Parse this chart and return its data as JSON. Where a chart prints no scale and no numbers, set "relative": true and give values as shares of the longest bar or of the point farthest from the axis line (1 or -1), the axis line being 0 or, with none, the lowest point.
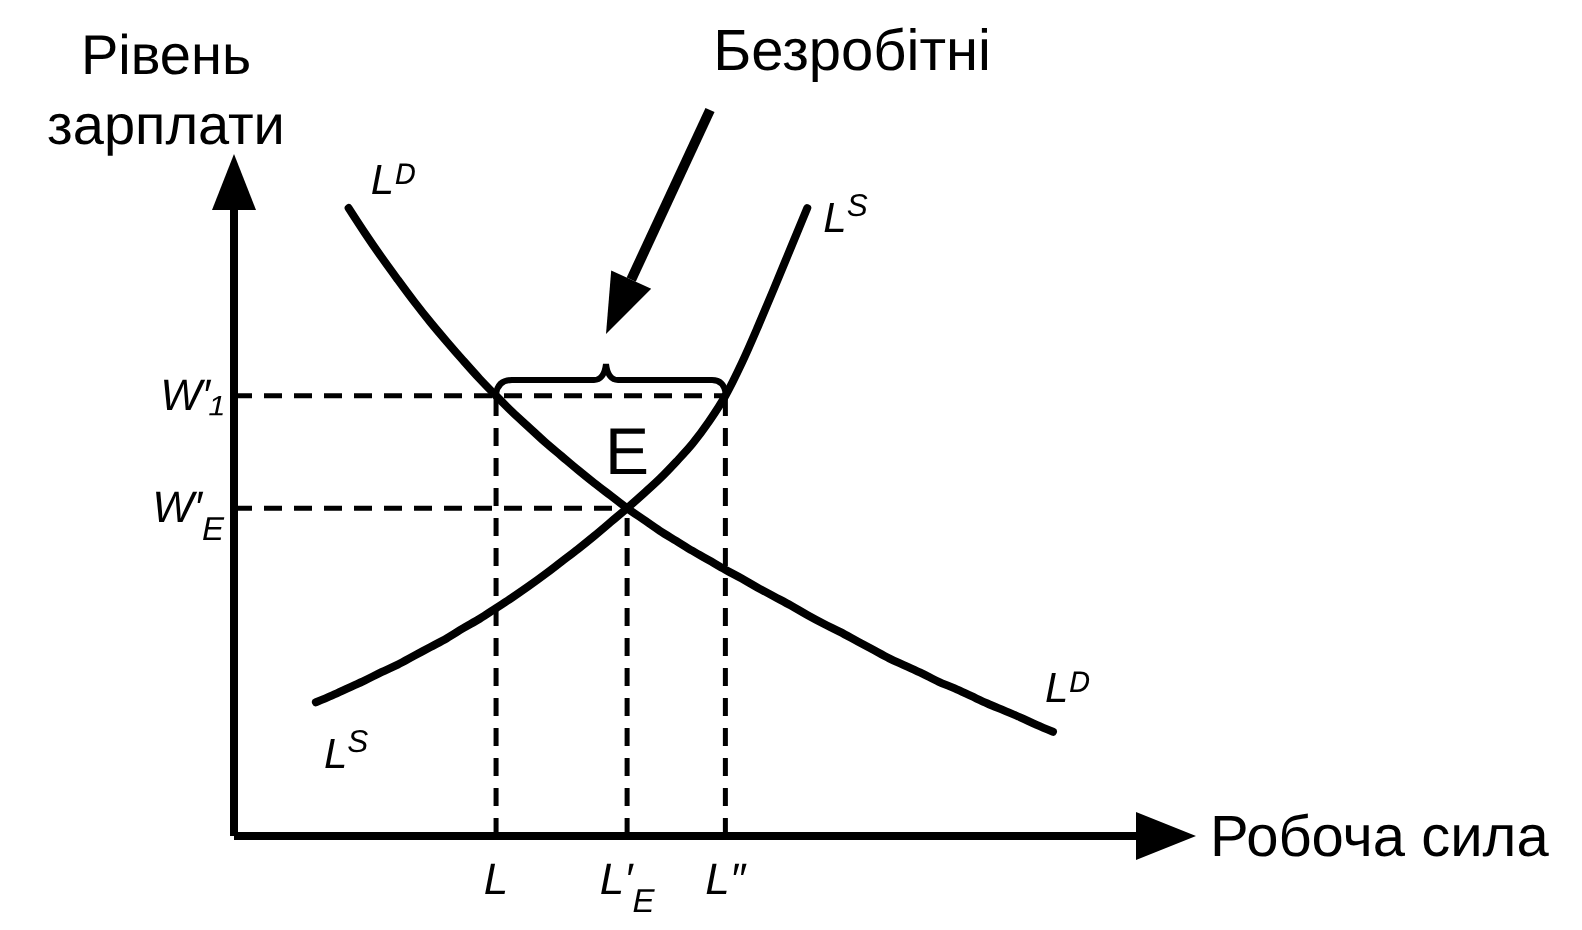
{
  "chart_data": {
    "type": "line",
    "relative": true,
    "xlabel": "Робоча сила",
    "ylabel": "Рівень зарплати",
    "categories": [
      null,
      null,
      null,
      null,
      null,
      null,
      null,
      null,
      null,
      null,
      null,
      null,
      null,
      null,
      null,
      null,
      "L",
      null,
      null,
      null,
      null,
      null,
      null,
      null,
      "L′$_{E}$",
      null,
      null,
      null,
      null,
      null,
      "L″",
      null,
      null,
      null,
      null,
      null,
      null,
      null,
      null,
      null,
      null,
      null,
      null,
      null,
      null,
      null,
      null,
      null,
      null,
      null,
      null,
      null,
      null,
      null,
      null,
      null,
      null,
      null,
      null
    ],
    "series": [
      {
        "name": "Lᴰ",
        "color": "#000000",
        "values": [
          null,
          null,
          null,
          null,
          null,
          null,
          null,
          1,
          0.96,
          0.922,
          0.886,
          0.851,
          0.818,
          0.787,
          0.757,
          0.728,
          0.701,
          0.675,
          0.651,
          0.627,
          0.605,
          0.583,
          0.562,
          0.542,
          0.522,
          0.504,
          0.486,
          0.47,
          0.454,
          0.439,
          0.424,
          0.41,
          0.395,
          0.381,
          0.367,
          0.352,
          0.338,
          0.325,
          0.311,
          0.297,
          0.283,
          0.271,
          0.259,
          0.246,
          0.235,
          0.223,
          0.211,
          0.2,
          0.189,
          0.177,
          0.166,
          null,
          null,
          null,
          null,
          null,
          null,
          null,
          null
        ]
      },
      {
        "name": "L$^{S}$",
        "color": "#000000",
        "values": [
          null,
          null,
          null,
          null,
          null,
          0.213,
          0.224,
          0.236,
          0.248,
          0.261,
          0.273,
          0.287,
          0.301,
          0.315,
          0.331,
          0.346,
          0.363,
          0.38,
          0.398,
          0.417,
          0.437,
          0.457,
          0.478,
          0.5,
          0.522,
          0.545,
          0.569,
          0.596,
          0.625,
          0.66,
          0.701,
          0.753,
          0.812,
          0.874,
          0.937,
          1,
          null,
          null,
          null,
          null,
          null,
          null,
          null,
          null,
          null,
          null,
          null,
          null,
          null,
          null,
          null,
          null,
          null,
          null,
          null,
          null,
          null,
          null,
          null
        ]
      }
    ],
    "marker": "none",
    "line_style": "solid",
    "ref_lines": [
      {
        "axis": "y",
        "value": 0.701,
        "label": "W′₁",
        "color": "#000000",
        "line_style": "dashed"
      },
      {
        "axis": "y",
        "value": 0.522,
        "label": "W′$_{E}$",
        "color": "#000000",
        "line_style": "dashed"
      },
      {
        "axis": "x",
        "value": "L",
        "color": "#000000",
        "line_style": "dashed"
      },
      {
        "axis": "x",
        "value": "L′$_{E}$",
        "color": "#000000",
        "line_style": "dashed"
      },
      {
        "axis": "x",
        "value": "L″",
        "color": "#000000",
        "line_style": "dashed"
      }
    ],
    "annotations": [
      "Безробітні",
      {
        "text": "E",
        "x": "L′$_{E}$",
        "y": 0.522
      }
    ]
  }
}
